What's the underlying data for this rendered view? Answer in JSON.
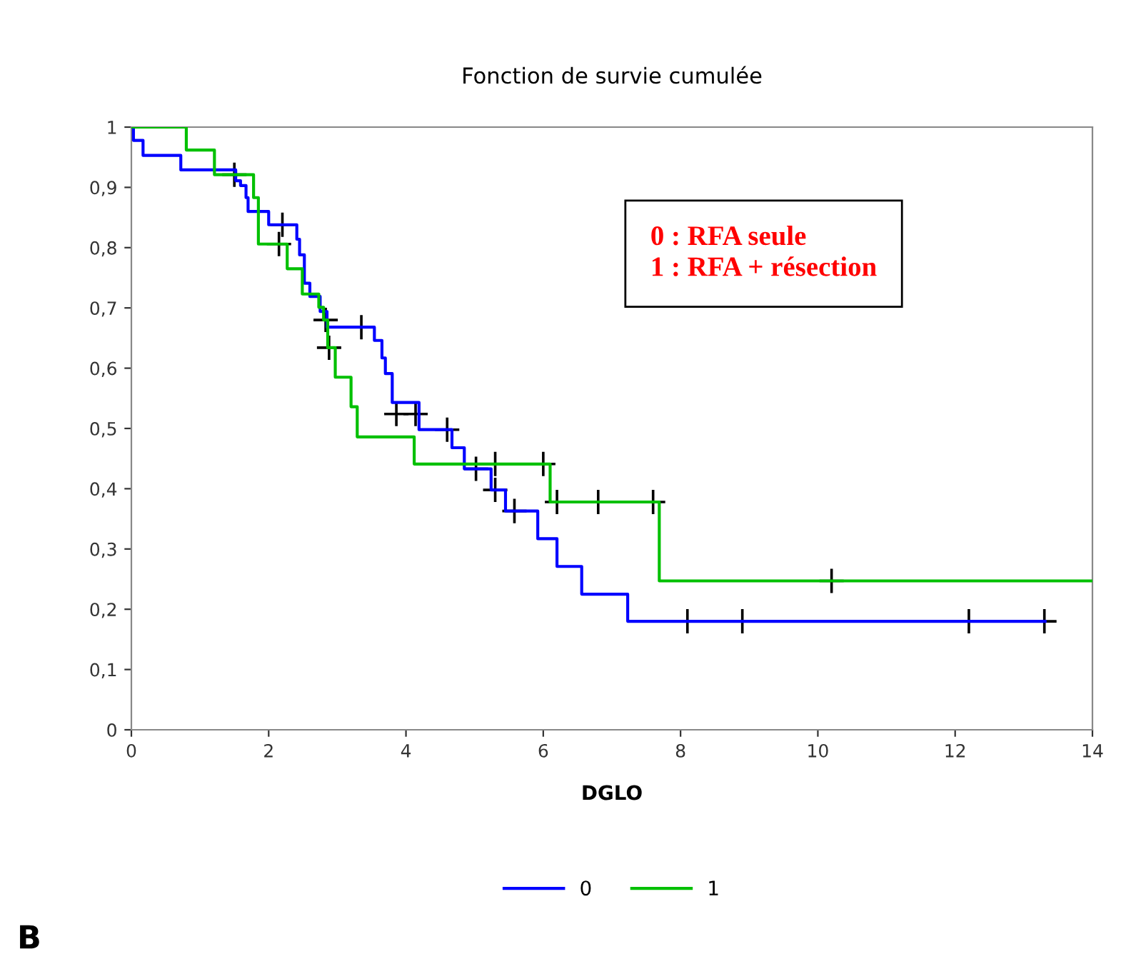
{
  "chart_data": {
    "type": "step",
    "title": "Fonction de survie cumulée",
    "xlabel": "DGLO",
    "xlim": [
      0,
      14
    ],
    "xticks": [
      0,
      2,
      4,
      6,
      8,
      10,
      12,
      14
    ],
    "ylim": [
      0,
      1
    ],
    "yticks": [
      0,
      {
        "value": 0.1,
        "label": "0,1"
      },
      {
        "value": 0.2,
        "label": "0,2"
      },
      {
        "value": 0.3,
        "label": "0,3"
      },
      {
        "value": 0.4,
        "label": "0,4"
      },
      {
        "value": 0.5,
        "label": "0,5"
      },
      {
        "value": 0.6,
        "label": "0,6"
      },
      {
        "value": 0.7,
        "label": "0,7"
      },
      {
        "value": 0.8,
        "label": "0,8"
      },
      {
        "value": 0.9,
        "label": "0,9"
      },
      1
    ],
    "grid": false,
    "legend": "bottom",
    "line_style": "solid",
    "marker": "none",
    "annotations": [
      "0 : RFA seule",
      "1 : RFA + résection",
      "B"
    ],
    "series": [
      {
        "name": "0",
        "color": "#0000ff",
        "x": [
          0,
          0.03,
          0.17,
          0.72,
          1.52,
          1.59,
          1.67,
          1.7,
          2.0,
          2.41,
          2.45,
          2.52,
          2.6,
          2.75,
          2.85,
          3.54,
          3.65,
          3.7,
          3.8,
          4.19,
          4.67,
          4.85,
          5.24,
          5.45,
          5.92,
          6.2,
          6.56,
          7.23,
          13.31
        ],
        "values": [
          1,
          0.978,
          0.953,
          0.929,
          0.911,
          0.903,
          0.883,
          0.86,
          0.838,
          0.814,
          0.788,
          0.741,
          0.719,
          0.694,
          0.668,
          0.646,
          0.617,
          0.591,
          0.543,
          0.498,
          0.468,
          0.433,
          0.398,
          0.363,
          0.317,
          0.271,
          0.225,
          0.18,
          0.18
        ]
      },
      {
        "name": "1",
        "color": "#00c000",
        "x": [
          0,
          0.8,
          1.21,
          1.78,
          1.85,
          2.27,
          2.49,
          2.73,
          2.8,
          2.86,
          2.97,
          3.2,
          3.29,
          4.12,
          6.1,
          7.69,
          14
        ],
        "values": [
          1,
          0.962,
          0.921,
          0.883,
          0.806,
          0.765,
          0.723,
          0.701,
          0.68,
          0.634,
          0.585,
          0.536,
          0.486,
          0.441,
          0.378,
          0.247,
          0.247
        ]
      },
      {
        "type": "scatter",
        "color": "#000000",
        "marker": "cross",
        "x": [
          2.2,
          3.35,
          3.86,
          4.14,
          4.6,
          5.02,
          5.3,
          5.58,
          8.1,
          8.9,
          12.2,
          13.3
        ],
        "values": [
          0.838,
          0.668,
          0.524,
          0.524,
          0.498,
          0.433,
          0.398,
          0.363,
          0.18,
          0.18,
          0.18,
          0.18
        ]
      },
      {
        "type": "scatter",
        "color": "#000000",
        "marker": "cross",
        "x": [
          1.5,
          2.15,
          2.83,
          2.88,
          5.3,
          6.0,
          6.2,
          6.8,
          7.6,
          10.2
        ],
        "values": [
          0.921,
          0.806,
          0.68,
          0.634,
          0.441,
          0.441,
          0.378,
          0.378,
          0.378,
          0.247
        ]
      }
    ]
  }
}
